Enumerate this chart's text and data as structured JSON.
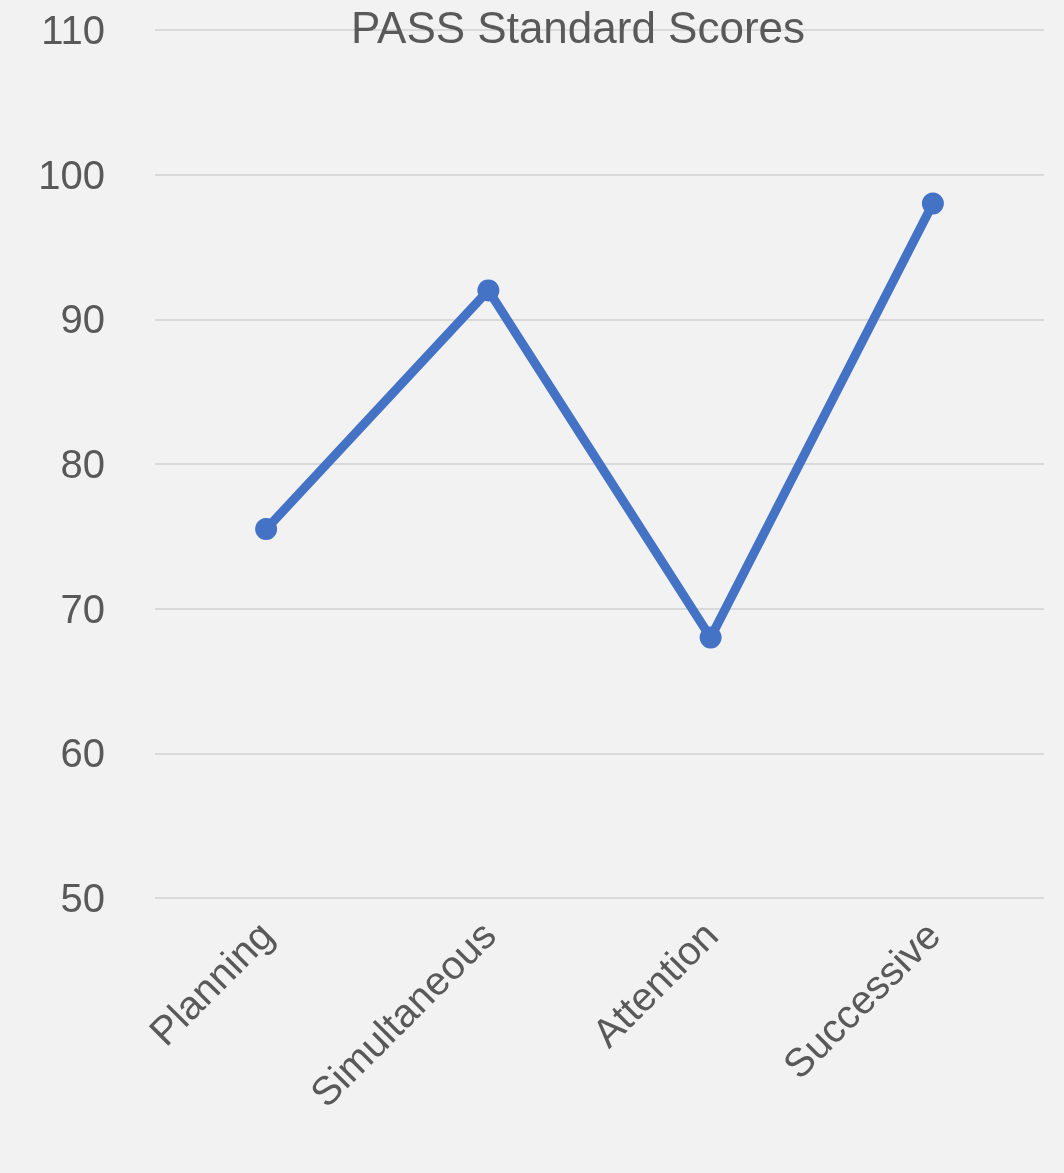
{
  "chart_data": {
    "type": "line",
    "title": "PASS Standard Scores",
    "categories": [
      "Planning",
      "Simultaneous",
      "Attention",
      "Successive"
    ],
    "series": [
      {
        "color": "#4472c4",
        "values": [
          75.5,
          92,
          68,
          98
        ]
      }
    ],
    "ylim": [
      50,
      110
    ],
    "yticks": [
      50,
      60,
      70,
      80,
      90,
      100,
      110
    ],
    "grid": "y",
    "marker": "circle",
    "line_style": "solid"
  }
}
